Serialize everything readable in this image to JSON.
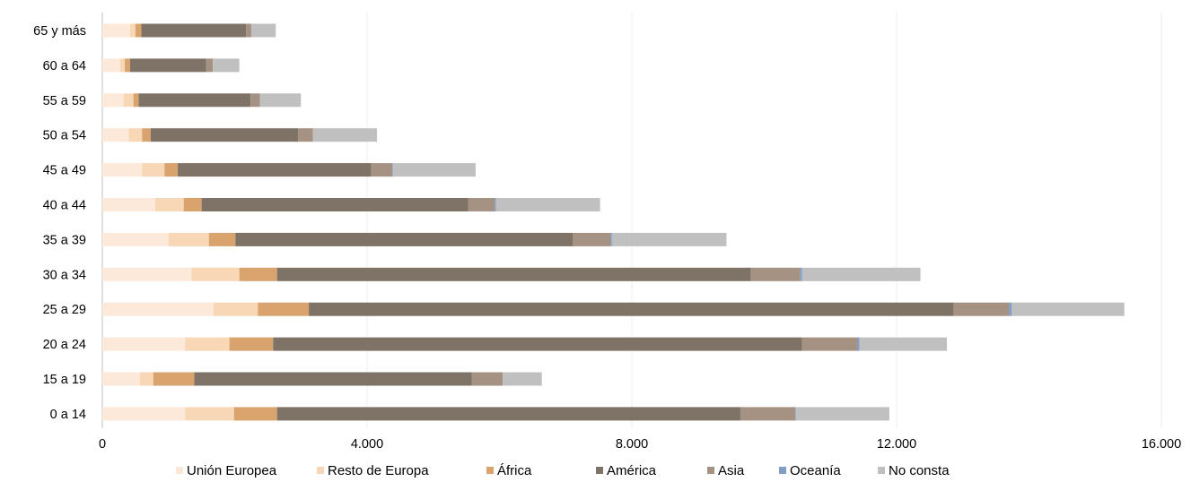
{
  "chart_data": {
    "type": "bar",
    "orientation": "horizontal",
    "stacked": true,
    "categories": [
      "65 y más",
      "60 a 64",
      "55 a 59",
      "50 a 54",
      "45 a 49",
      "40 a 44",
      "35 a 39",
      "30 a 34",
      "25 a 29",
      "20 a 24",
      "15 a 19",
      "0 a 14"
    ],
    "series": [
      {
        "name": "Unión Europea",
        "color": "#fde9d9",
        "values": [
          420,
          270,
          320,
          400,
          600,
          800,
          1000,
          1350,
          1680,
          1250,
          570,
          1250
        ]
      },
      {
        "name": "Resto de Europa",
        "color": "#f8d7b6",
        "values": [
          80,
          70,
          150,
          200,
          340,
          430,
          610,
          720,
          670,
          670,
          200,
          740
        ]
      },
      {
        "name": "África",
        "color": "#d9a36e",
        "values": [
          90,
          80,
          80,
          130,
          200,
          270,
          400,
          570,
          770,
          660,
          620,
          650
        ]
      },
      {
        "name": "América",
        "color": "#7f7367",
        "values": [
          1580,
          1150,
          1690,
          2230,
          2920,
          4030,
          5100,
          7160,
          9740,
          7990,
          4190,
          7000
        ]
      },
      {
        "name": "Asia",
        "color": "#a69282",
        "values": [
          80,
          100,
          140,
          220,
          320,
          400,
          570,
          740,
          840,
          840,
          470,
          830
        ]
      },
      {
        "name": "Oceanía",
        "color": "#7f9fc8",
        "values": [
          0,
          0,
          0,
          0,
          10,
          20,
          20,
          30,
          40,
          30,
          0,
          10
        ]
      },
      {
        "name": "No consta",
        "color": "#c0c0c0",
        "values": [
          370,
          400,
          620,
          970,
          1250,
          1570,
          1730,
          1790,
          1700,
          1320,
          590,
          1410
        ]
      }
    ],
    "xlim": [
      0,
      16000
    ],
    "xticks": [
      0,
      4000,
      8000,
      12000,
      16000
    ],
    "tick_labels": [
      "0",
      "4.000",
      "8.000",
      "12.000",
      "16.000"
    ],
    "grid": "vertical",
    "legend": "bottom",
    "title": "",
    "xlabel": "",
    "ylabel": ""
  }
}
